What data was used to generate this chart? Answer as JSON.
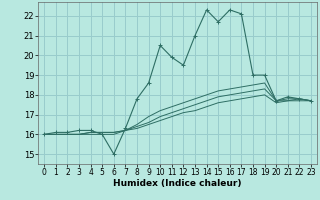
{
  "title": "",
  "xlabel": "Humidex (Indice chaleur)",
  "ylabel": "",
  "background_color": "#b8e8e0",
  "grid_color": "#99cccc",
  "line_color": "#2e6e64",
  "xlim": [
    -0.5,
    23.5
  ],
  "ylim": [
    14.5,
    22.7
  ],
  "xticks": [
    0,
    1,
    2,
    3,
    4,
    5,
    6,
    7,
    8,
    9,
    10,
    11,
    12,
    13,
    14,
    15,
    16,
    17,
    18,
    19,
    20,
    21,
    22,
    23
  ],
  "yticks": [
    15,
    16,
    17,
    18,
    19,
    20,
    21,
    22
  ],
  "series": [
    [
      16.0,
      16.1,
      16.1,
      16.2,
      16.2,
      16.0,
      15.0,
      16.3,
      17.8,
      18.6,
      20.5,
      19.9,
      19.5,
      21.0,
      22.3,
      21.7,
      22.3,
      22.1,
      19.0,
      19.0,
      17.7,
      17.9,
      17.8,
      17.7
    ],
    [
      16.0,
      16.0,
      16.0,
      16.0,
      16.0,
      16.0,
      16.0,
      16.2,
      16.5,
      16.9,
      17.2,
      17.4,
      17.6,
      17.8,
      18.0,
      18.2,
      18.3,
      18.4,
      18.5,
      18.6,
      17.7,
      17.8,
      17.8,
      17.7
    ],
    [
      16.0,
      16.0,
      16.0,
      16.0,
      16.1,
      16.1,
      16.1,
      16.2,
      16.4,
      16.6,
      16.9,
      17.1,
      17.3,
      17.5,
      17.7,
      17.9,
      18.0,
      18.1,
      18.2,
      18.3,
      17.7,
      17.7,
      17.8,
      17.7
    ],
    [
      16.0,
      16.0,
      16.0,
      16.0,
      16.1,
      16.1,
      16.1,
      16.2,
      16.3,
      16.5,
      16.7,
      16.9,
      17.1,
      17.2,
      17.4,
      17.6,
      17.7,
      17.8,
      17.9,
      18.0,
      17.6,
      17.7,
      17.7,
      17.7
    ]
  ]
}
